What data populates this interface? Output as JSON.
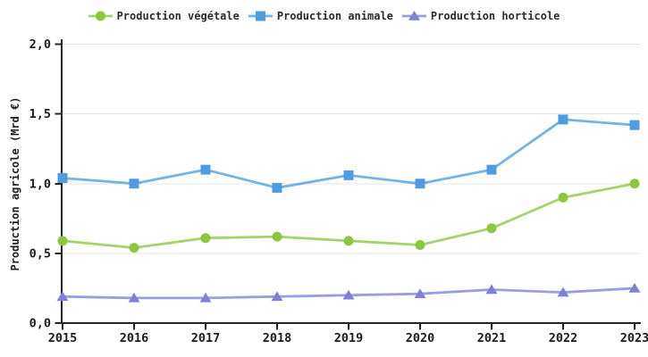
{
  "chart_data": {
    "type": "line",
    "title": "",
    "categories": [
      "2015",
      "2016",
      "2017",
      "2018",
      "2019",
      "2020",
      "2021",
      "2022",
      "2023"
    ],
    "series": [
      {
        "name": "Production végétale",
        "marker": "circle",
        "color": "#8dc63f",
        "values": [
          0.59,
          0.54,
          0.61,
          0.62,
          0.59,
          0.56,
          0.68,
          0.9,
          1.0
        ]
      },
      {
        "name": "Production animale",
        "marker": "square",
        "color": "#4d9de0",
        "values": [
          1.04,
          1.0,
          1.1,
          0.97,
          1.06,
          1.0,
          1.1,
          1.46,
          1.42
        ]
      },
      {
        "name": "Production horticole",
        "marker": "triangle",
        "color": "#7e81d8",
        "values": [
          0.19,
          0.18,
          0.18,
          0.19,
          0.2,
          0.21,
          0.24,
          0.22,
          0.25
        ]
      }
    ],
    "xlabel": "",
    "ylabel": "Production agricole (Mrd €)",
    "ylim": [
      0,
      2.0
    ],
    "yticks": [
      {
        "value": 0.0,
        "label": "0,0"
      },
      {
        "value": 0.5,
        "label": "0,5"
      },
      {
        "value": 1.0,
        "label": "1,0"
      },
      {
        "value": 1.5,
        "label": "1,5"
      },
      {
        "value": 2.0,
        "label": "2,0"
      }
    ],
    "grid": "horizontal-only",
    "legend_position": "top-center"
  },
  "colors": {
    "background": "#ffffff",
    "axis": "#262626",
    "grid": "#e4e4e4",
    "tick_text": "#1c1c1c",
    "legend_text": "#2b2b2b"
  }
}
